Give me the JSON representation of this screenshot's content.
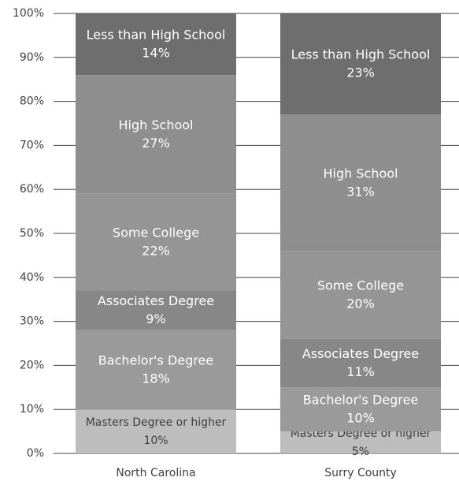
{
  "chart_data": {
    "type": "stacked_bar",
    "categories": [
      "North Carolina",
      "Surry County"
    ],
    "series": [
      {
        "name": "Masters Degree or higher",
        "color": "#bdbdbd",
        "values": [
          10,
          5
        ],
        "value_labels": [
          "10%",
          "5%"
        ]
      },
      {
        "name": "Bachelor's Degree",
        "color": "#9a9a9a",
        "values": [
          18,
          10
        ],
        "value_labels": [
          "18%",
          "10%"
        ]
      },
      {
        "name": "Associates Degree",
        "color": "#878787",
        "values": [
          9,
          11
        ],
        "value_labels": [
          "9%",
          "11%"
        ]
      },
      {
        "name": "Some College",
        "color": "#959595",
        "values": [
          22,
          20
        ],
        "value_labels": [
          "22%",
          "20%"
        ]
      },
      {
        "name": "High School",
        "color": "#8e8e8e",
        "values": [
          27,
          31
        ],
        "value_labels": [
          "27%",
          "31%"
        ]
      },
      {
        "name": "Less than High School",
        "color": "#6e6e6e",
        "values": [
          14,
          23
        ],
        "value_labels": [
          "14%",
          "23%"
        ]
      }
    ],
    "ylim": [
      0,
      100
    ],
    "yticks": [
      {
        "value": 0,
        "label": "0%"
      },
      {
        "value": 10,
        "label": "10%"
      },
      {
        "value": 20,
        "label": "20%"
      },
      {
        "value": 30,
        "label": "30%"
      },
      {
        "value": 40,
        "label": "40%"
      },
      {
        "value": 50,
        "label": "50%"
      },
      {
        "value": 60,
        "label": "60%"
      },
      {
        "value": 70,
        "label": "70%"
      },
      {
        "value": 80,
        "label": "80%"
      },
      {
        "value": 90,
        "label": "90%"
      },
      {
        "value": 100,
        "label": "100%"
      }
    ],
    "grid": true
  }
}
